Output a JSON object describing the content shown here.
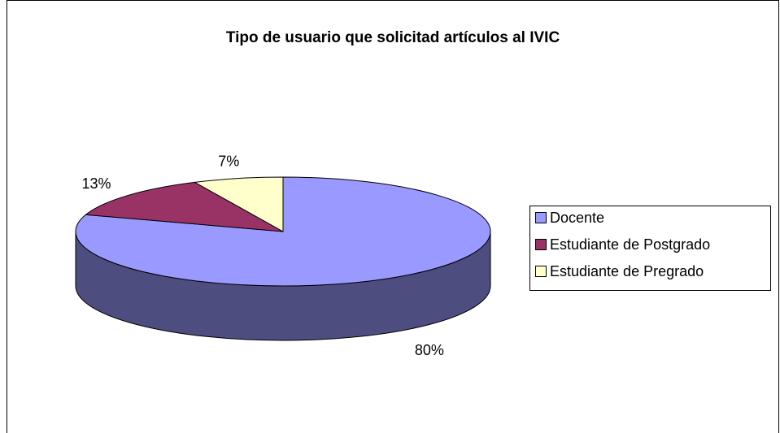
{
  "chart_data": {
    "type": "pie",
    "title": "Tipo de usuario que solicitad artículos al IVIC",
    "categories": [
      "Docente",
      "Estudiante de Postgrado",
      "Estudiante de Pregrado"
    ],
    "values": [
      80,
      13,
      7
    ],
    "value_labels": [
      "80%",
      "13%",
      "7%"
    ],
    "colors": [
      "#9999ff",
      "#993366",
      "#ffffcc"
    ],
    "legend": "right"
  }
}
